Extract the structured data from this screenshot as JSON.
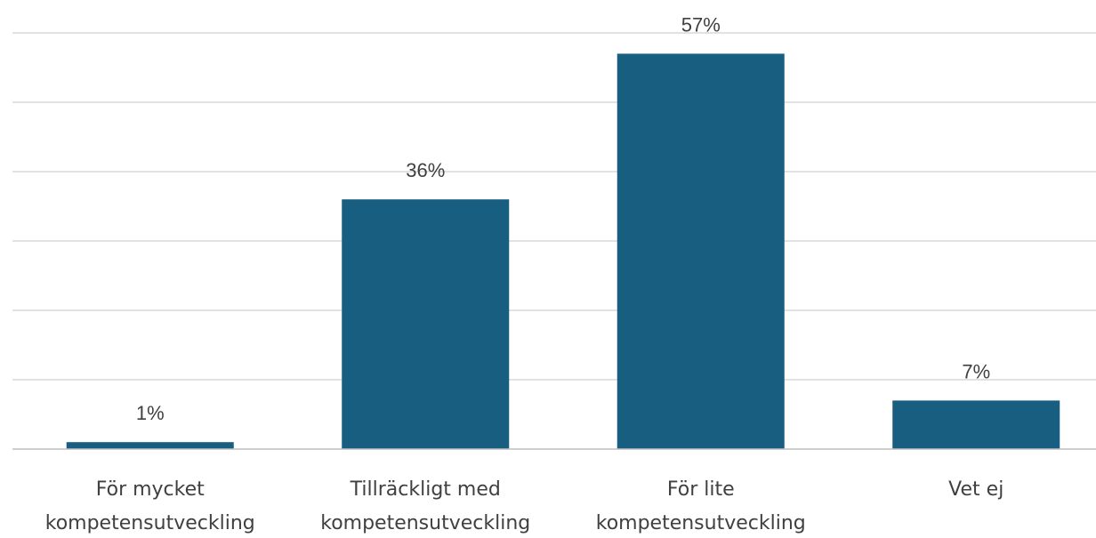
{
  "chart_data": {
    "type": "bar",
    "categories": [
      [
        "För mycket",
        "kompetensutveckling"
      ],
      [
        "Tillräckligt med",
        "kompetensutveckling"
      ],
      [
        "För lite",
        "kompetensutveckling"
      ],
      [
        "Vet ej"
      ]
    ],
    "values": [
      1,
      36,
      57,
      7
    ],
    "value_labels": [
      "1%",
      "36%",
      "57%",
      "7%"
    ],
    "title": "",
    "xlabel": "",
    "ylabel": "",
    "ylim": [
      0,
      60
    ],
    "grid": true,
    "legend": "none",
    "bar_color": "#175e80"
  }
}
